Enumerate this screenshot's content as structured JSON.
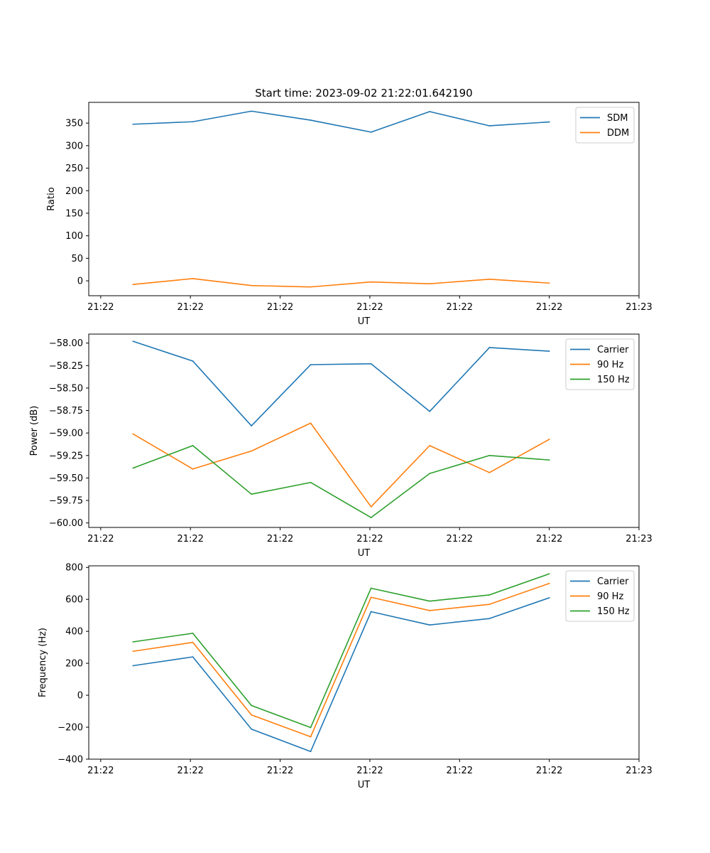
{
  "chart_data": [
    {
      "type": "line",
      "title": "Start time: 2023-09-02 21:22:01.642190",
      "xlabel": "UT",
      "ylabel": "Ratio",
      "xlim": [
        -0.1,
        9.1
      ],
      "ylim": [
        -33,
        396
      ],
      "xticks": [
        {
          "v": 0.1,
          "label": "21:22"
        },
        {
          "v": 1.6,
          "label": "21:22"
        },
        {
          "v": 3.1,
          "label": "21:22"
        },
        {
          "v": 4.6,
          "label": "21:22"
        },
        {
          "v": 6.1,
          "label": "21:22"
        },
        {
          "v": 7.6,
          "label": "21:22"
        },
        {
          "v": 9.1,
          "label": "21:23"
        }
      ],
      "yticks": [
        {
          "v": 0,
          "label": "0"
        },
        {
          "v": 50,
          "label": "50"
        },
        {
          "v": 100,
          "label": "100"
        },
        {
          "v": 150,
          "label": "150"
        },
        {
          "v": 200,
          "label": "200"
        },
        {
          "v": 250,
          "label": "250"
        },
        {
          "v": 300,
          "label": "300"
        },
        {
          "v": 350,
          "label": "350"
        }
      ],
      "legend_position": "top-right",
      "x": [
        0.64,
        1.64,
        2.62,
        3.61,
        4.62,
        5.6,
        6.6,
        7.6
      ],
      "series": [
        {
          "name": "SDM",
          "color": "#1f77b4",
          "values": [
            347.5,
            353,
            376.5,
            356.5,
            330,
            375.5,
            344,
            352.5
          ]
        },
        {
          "name": "DDM",
          "color": "#ff7f0e",
          "values": [
            -8,
            5,
            -10.5,
            -13.5,
            -2.5,
            -6.5,
            3.5,
            -5
          ]
        }
      ]
    },
    {
      "type": "line",
      "title": "",
      "xlabel": "UT",
      "ylabel": "Power (dB)",
      "xlim": [
        -0.1,
        9.1
      ],
      "ylim": [
        -60.05,
        -57.9
      ],
      "xticks": [
        {
          "v": 0.1,
          "label": "21:22"
        },
        {
          "v": 1.6,
          "label": "21:22"
        },
        {
          "v": 3.1,
          "label": "21:22"
        },
        {
          "v": 4.6,
          "label": "21:22"
        },
        {
          "v": 6.1,
          "label": "21:22"
        },
        {
          "v": 7.6,
          "label": "21:22"
        },
        {
          "v": 9.1,
          "label": "21:23"
        }
      ],
      "yticks": [
        {
          "v": -60,
          "label": "−60.00"
        },
        {
          "v": -59.75,
          "label": "−59.75"
        },
        {
          "v": -59.5,
          "label": "−59.50"
        },
        {
          "v": -59.25,
          "label": "−59.25"
        },
        {
          "v": -59,
          "label": "−59.00"
        },
        {
          "v": -58.75,
          "label": "−58.75"
        },
        {
          "v": -58.5,
          "label": "−58.50"
        },
        {
          "v": -58.25,
          "label": "−58.25"
        },
        {
          "v": -58,
          "label": "−58.00"
        }
      ],
      "legend_position": "top-right",
      "x": [
        0.64,
        1.64,
        2.62,
        3.61,
        4.62,
        5.6,
        6.6,
        7.6
      ],
      "series": [
        {
          "name": "Carrier",
          "color": "#1f77b4",
          "values": [
            -57.98,
            -58.2,
            -58.92,
            -58.24,
            -58.23,
            -58.76,
            -58.05,
            -58.09
          ]
        },
        {
          "name": "90 Hz",
          "color": "#ff7f0e",
          "values": [
            -59.01,
            -59.4,
            -59.2,
            -58.89,
            -59.82,
            -59.14,
            -59.44,
            -59.07
          ]
        },
        {
          "name": "150 Hz",
          "color": "#2ca02c",
          "values": [
            -59.39,
            -59.14,
            -59.68,
            -59.55,
            -59.94,
            -59.45,
            -59.25,
            -59.3
          ]
        }
      ]
    },
    {
      "type": "line",
      "title": "",
      "xlabel": "UT",
      "ylabel": "Frequency (Hz)",
      "xlim": [
        -0.1,
        9.1
      ],
      "ylim": [
        -400,
        810
      ],
      "xticks": [
        {
          "v": 0.1,
          "label": "21:22"
        },
        {
          "v": 1.6,
          "label": "21:22"
        },
        {
          "v": 3.1,
          "label": "21:22"
        },
        {
          "v": 4.6,
          "label": "21:22"
        },
        {
          "v": 6.1,
          "label": "21:22"
        },
        {
          "v": 7.6,
          "label": "21:22"
        },
        {
          "v": 9.1,
          "label": "21:23"
        }
      ],
      "yticks": [
        {
          "v": -400,
          "label": "−400"
        },
        {
          "v": -200,
          "label": "−200"
        },
        {
          "v": 0,
          "label": "0"
        },
        {
          "v": 200,
          "label": "200"
        },
        {
          "v": 400,
          "label": "400"
        },
        {
          "v": 600,
          "label": "600"
        },
        {
          "v": 800,
          "label": "800"
        }
      ],
      "legend_position": "top-right",
      "x": [
        0.64,
        1.64,
        2.62,
        3.61,
        4.62,
        5.6,
        6.6,
        7.6
      ],
      "series": [
        {
          "name": "Carrier",
          "color": "#1f77b4",
          "values": [
            185,
            240,
            -212,
            -352,
            523,
            440,
            480,
            610
          ]
        },
        {
          "name": "90 Hz",
          "color": "#ff7f0e",
          "values": [
            275,
            331,
            -123,
            -260,
            613,
            530,
            569,
            700
          ]
        },
        {
          "name": "150 Hz",
          "color": "#2ca02c",
          "values": [
            334,
            388,
            -64,
            -202,
            670,
            589,
            628,
            760
          ]
        }
      ]
    }
  ]
}
